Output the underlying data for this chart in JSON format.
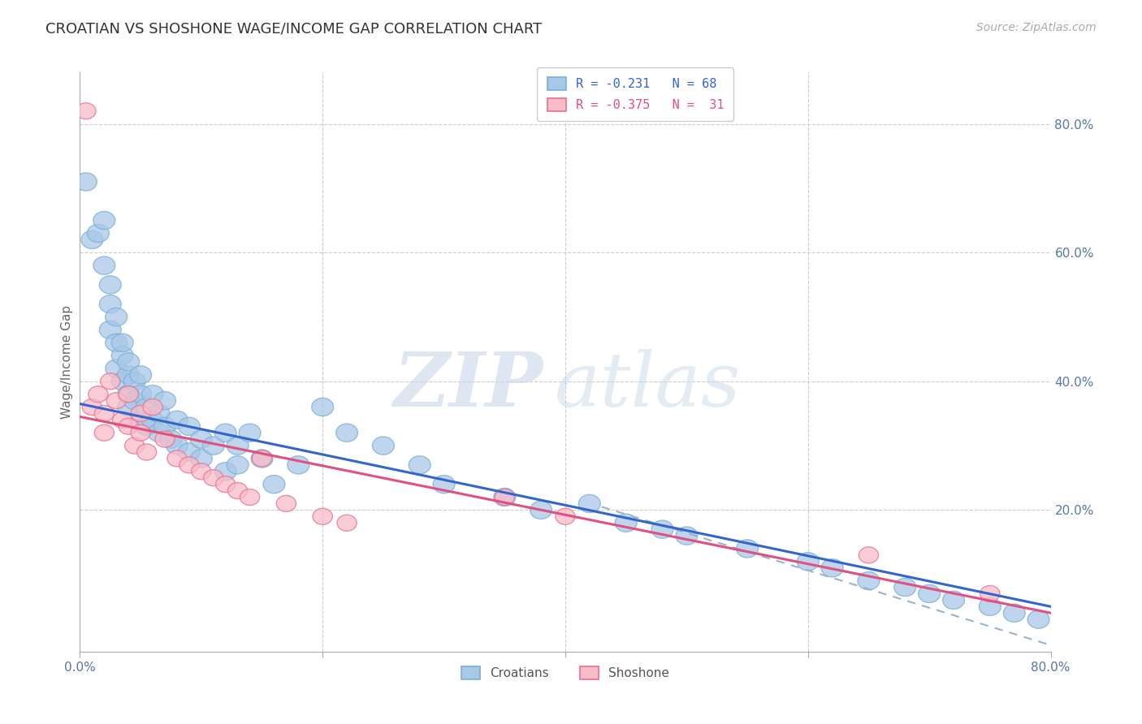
{
  "title": "CROATIAN VS SHOSHONE WAGE/INCOME GAP CORRELATION CHART",
  "source_text": "Source: ZipAtlas.com",
  "ylabel": "Wage/Income Gap",
  "xlim": [
    0.0,
    0.8
  ],
  "ylim": [
    -0.02,
    0.88
  ],
  "xticks": [
    0.0,
    0.2,
    0.4,
    0.6,
    0.8
  ],
  "yticks": [
    0.2,
    0.4,
    0.6,
    0.8
  ],
  "xticklabels": [
    "0.0%",
    "",
    "",
    "",
    "80.0%"
  ],
  "yticklabels": [
    "20.0%",
    "40.0%",
    "60.0%",
    "80.0%"
  ],
  "croatian_line_color": "#3366cc",
  "shoshone_line_color": "#e05080",
  "dashed_line_color": "#99b3cc",
  "background_color": "#ffffff",
  "grid_color": "#cccccc",
  "title_color": "#333333",
  "tick_color": "#5577aa",
  "watermark_color": "#d0dce8",
  "cro_fill": "#a8c8e8",
  "cro_edge": "#7bafd4",
  "sho_fill": "#f9bbc8",
  "sho_edge": "#e87090",
  "croatian_x": [
    0.005,
    0.01,
    0.015,
    0.02,
    0.02,
    0.025,
    0.025,
    0.025,
    0.03,
    0.03,
    0.03,
    0.035,
    0.035,
    0.035,
    0.04,
    0.04,
    0.04,
    0.04,
    0.045,
    0.045,
    0.05,
    0.05,
    0.05,
    0.055,
    0.055,
    0.06,
    0.06,
    0.065,
    0.065,
    0.07,
    0.07,
    0.075,
    0.08,
    0.08,
    0.09,
    0.09,
    0.1,
    0.1,
    0.11,
    0.12,
    0.12,
    0.13,
    0.13,
    0.14,
    0.15,
    0.16,
    0.18,
    0.2,
    0.22,
    0.25,
    0.28,
    0.3,
    0.35,
    0.38,
    0.42,
    0.45,
    0.48,
    0.5,
    0.55,
    0.6,
    0.62,
    0.65,
    0.68,
    0.7,
    0.72,
    0.75,
    0.77,
    0.79
  ],
  "croatian_y": [
    0.71,
    0.62,
    0.63,
    0.65,
    0.58,
    0.55,
    0.52,
    0.48,
    0.5,
    0.46,
    0.42,
    0.44,
    0.4,
    0.46,
    0.41,
    0.38,
    0.43,
    0.36,
    0.4,
    0.37,
    0.38,
    0.34,
    0.41,
    0.36,
    0.33,
    0.34,
    0.38,
    0.32,
    0.35,
    0.33,
    0.37,
    0.31,
    0.3,
    0.34,
    0.29,
    0.33,
    0.28,
    0.31,
    0.3,
    0.26,
    0.32,
    0.27,
    0.3,
    0.32,
    0.28,
    0.24,
    0.27,
    0.36,
    0.32,
    0.3,
    0.27,
    0.24,
    0.22,
    0.2,
    0.21,
    0.18,
    0.17,
    0.16,
    0.14,
    0.12,
    0.11,
    0.09,
    0.08,
    0.07,
    0.06,
    0.05,
    0.04,
    0.03
  ],
  "shoshone_x": [
    0.005,
    0.01,
    0.015,
    0.02,
    0.02,
    0.025,
    0.03,
    0.035,
    0.04,
    0.04,
    0.045,
    0.05,
    0.05,
    0.055,
    0.06,
    0.07,
    0.08,
    0.09,
    0.1,
    0.11,
    0.12,
    0.13,
    0.14,
    0.15,
    0.17,
    0.2,
    0.22,
    0.35,
    0.4,
    0.65,
    0.75
  ],
  "shoshone_y": [
    0.82,
    0.36,
    0.38,
    0.35,
    0.32,
    0.4,
    0.37,
    0.34,
    0.38,
    0.33,
    0.3,
    0.35,
    0.32,
    0.29,
    0.36,
    0.31,
    0.28,
    0.27,
    0.26,
    0.25,
    0.24,
    0.23,
    0.22,
    0.28,
    0.21,
    0.19,
    0.18,
    0.22,
    0.19,
    0.13,
    0.07
  ],
  "cro_line_x0": 0.0,
  "cro_line_y0": 0.365,
  "cro_line_x1": 0.8,
  "cro_line_y1": 0.05,
  "sho_line_x0": 0.0,
  "sho_line_y0": 0.345,
  "sho_line_x1": 0.8,
  "sho_line_y1": 0.04,
  "dash_line_x0": 0.43,
  "dash_line_y0": 0.205,
  "dash_line_x1": 0.8,
  "dash_line_y1": -0.01
}
